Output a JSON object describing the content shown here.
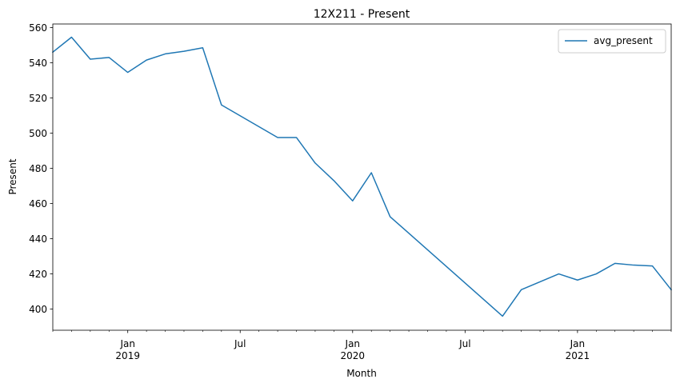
{
  "chart_data": {
    "type": "line",
    "title": "12X211 - Present",
    "xlabel": "Month",
    "ylabel": "Present",
    "ylim": [
      388,
      562
    ],
    "xlim": [
      "2018-09",
      "2021-06"
    ],
    "grid": false,
    "legend": {
      "position": "top-right"
    },
    "y_ticks": [
      400,
      420,
      440,
      460,
      480,
      500,
      520,
      540,
      560
    ],
    "x_ticks": [
      {
        "month": "2019-01",
        "label": "Jan",
        "sublabel": "2019"
      },
      {
        "month": "2019-07",
        "label": "Jul",
        "sublabel": ""
      },
      {
        "month": "2020-01",
        "label": "Jan",
        "sublabel": "2020"
      },
      {
        "month": "2020-07",
        "label": "Jul",
        "sublabel": ""
      },
      {
        "month": "2021-01",
        "label": "Jan",
        "sublabel": "2021"
      }
    ],
    "series": [
      {
        "name": "avg_present",
        "color": "#1f77b4",
        "points": [
          [
            "2018-09",
            546
          ],
          [
            "2018-10",
            554.5
          ],
          [
            "2018-11",
            542
          ],
          [
            "2018-12",
            543
          ],
          [
            "2019-01",
            534.5
          ],
          [
            "2019-02",
            541.5
          ],
          [
            "2019-03",
            545
          ],
          [
            "2019-04",
            546.5
          ],
          [
            "2019-05",
            548.5
          ],
          [
            "2019-06",
            516
          ],
          [
            "2019-09",
            497.5
          ],
          [
            "2019-10",
            497.5
          ],
          [
            "2019-11",
            483
          ],
          [
            "2019-12",
            473
          ],
          [
            "2020-01",
            461.5
          ],
          [
            "2020-02",
            477.5
          ],
          [
            "2020-03",
            452.5
          ],
          [
            "2020-09",
            396
          ],
          [
            "2020-10",
            411
          ],
          [
            "2020-12",
            420
          ],
          [
            "2021-01",
            416.5
          ],
          [
            "2021-02",
            420
          ],
          [
            "2021-03",
            426
          ],
          [
            "2021-04",
            425
          ],
          [
            "2021-05",
            424.5
          ],
          [
            "2021-06",
            411
          ]
        ]
      }
    ]
  }
}
